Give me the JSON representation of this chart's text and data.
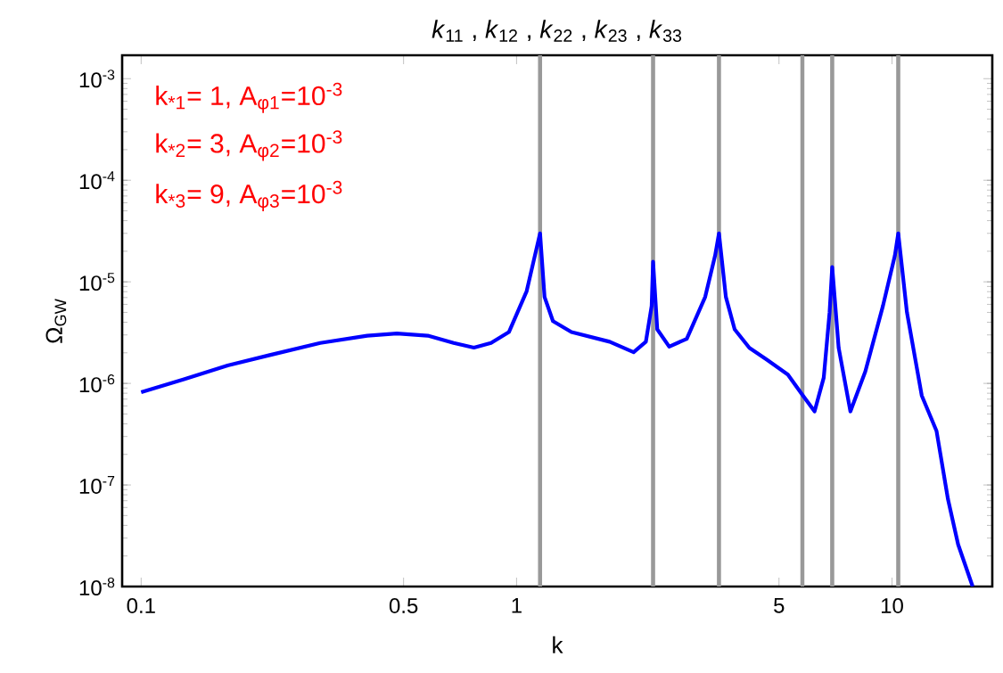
{
  "chart_data": {
    "type": "line",
    "title": "*k*$_{11}$ , *k*$_{12}$ , *k*$_{22}$ , *k*$_{23}$ , *k*$_{33}$",
    "xlabel": "k",
    "ylabel": "Ω$_{GW}$",
    "log": "xy",
    "annotations": [
      "k$_{*1}$=  1, A$_{φ1}$=10$^{-3}$",
      "k$_{*2}$=  3, A$_{φ2}$=10$^{-3}$",
      "k$_{*3}$=  9, A$_{φ3}$=10$^{-3}$"
    ],
    "x": [
      0.1,
      0.13,
      0.17,
      0.22,
      0.3,
      0.4,
      0.48,
      0.58,
      0.68,
      0.77,
      0.855,
      0.954,
      1.064,
      1.124,
      1.155,
      1.187,
      1.25,
      1.4,
      1.77,
      2.05,
      2.21,
      2.29,
      2.31,
      2.37,
      2.55,
      2.84,
      3.18,
      3.38,
      3.46,
      3.61,
      3.81,
      4.17,
      4.65,
      5.28,
      5.79,
      6.22,
      6.58,
      6.82,
      6.93,
      7.21,
      7.75,
      8.49,
      9.46,
      10.18,
      10.39,
      10.96,
      12.0,
      13.14,
      14.1,
      15.0,
      16.4
    ],
    "series": [
      {
        "color": "#0000ff",
        "values": [
          8.2e-07,
          1.1e-06,
          1.5e-06,
          1.9e-06,
          2.5e-06,
          2.95e-06,
          3.1e-06,
          2.95e-06,
          2.5e-06,
          2.25e-06,
          2.5e-06,
          3.2e-06,
          8.1e-06,
          1.95e-05,
          3e-05,
          7.1e-06,
          4.1e-06,
          3.2e-06,
          2.57e-06,
          2.03e-06,
          2.57e-06,
          5.8e-06,
          1.58e-05,
          3.4e-06,
          2.3e-06,
          2.75e-06,
          7.1e-06,
          1.82e-05,
          3e-05,
          7.1e-06,
          3.4e-06,
          2.24e-06,
          1.7e-06,
          1.22e-06,
          7.6e-07,
          5.3e-07,
          1.14e-06,
          5e-06,
          1.4e-05,
          2.24e-06,
          5.3e-07,
          1.31e-06,
          5.8e-06,
          1.82e-05,
          3e-05,
          5e-06,
          7.6e-07,
          3.4e-07,
          7.2e-08,
          2.6e-08,
          1e-08
        ]
      }
    ],
    "xlim": [
      0.089,
      18.5
    ],
    "ylim": [
      1e-08,
      0.0017
    ],
    "xticks": [
      0.1,
      0.5,
      1,
      5,
      10
    ],
    "yticks": [
      {
        "value": 1e-08,
        "label": "10$^{-8}$"
      },
      {
        "value": 1e-07,
        "label": "10$^{-7}$"
      },
      {
        "value": 1e-06,
        "label": "10$^{-6}$"
      },
      {
        "value": 1e-05,
        "label": "10$^{-5}$"
      },
      {
        "value": 0.0001,
        "label": "10$^{-4}$"
      },
      {
        "value": 0.001,
        "label": "10$^{-3}$"
      }
    ],
    "ref_lines": [
      {
        "axis": "x",
        "value": 1.155,
        "color": "#999999"
      },
      {
        "axis": "x",
        "value": 2.31,
        "color": "#999999"
      },
      {
        "axis": "x",
        "value": 3.46,
        "color": "#999999"
      },
      {
        "axis": "x",
        "value": 5.77,
        "color": "#999999"
      },
      {
        "axis": "x",
        "value": 6.93,
        "color": "#999999"
      },
      {
        "axis": "x",
        "value": 10.39,
        "color": "#999999"
      }
    ]
  }
}
